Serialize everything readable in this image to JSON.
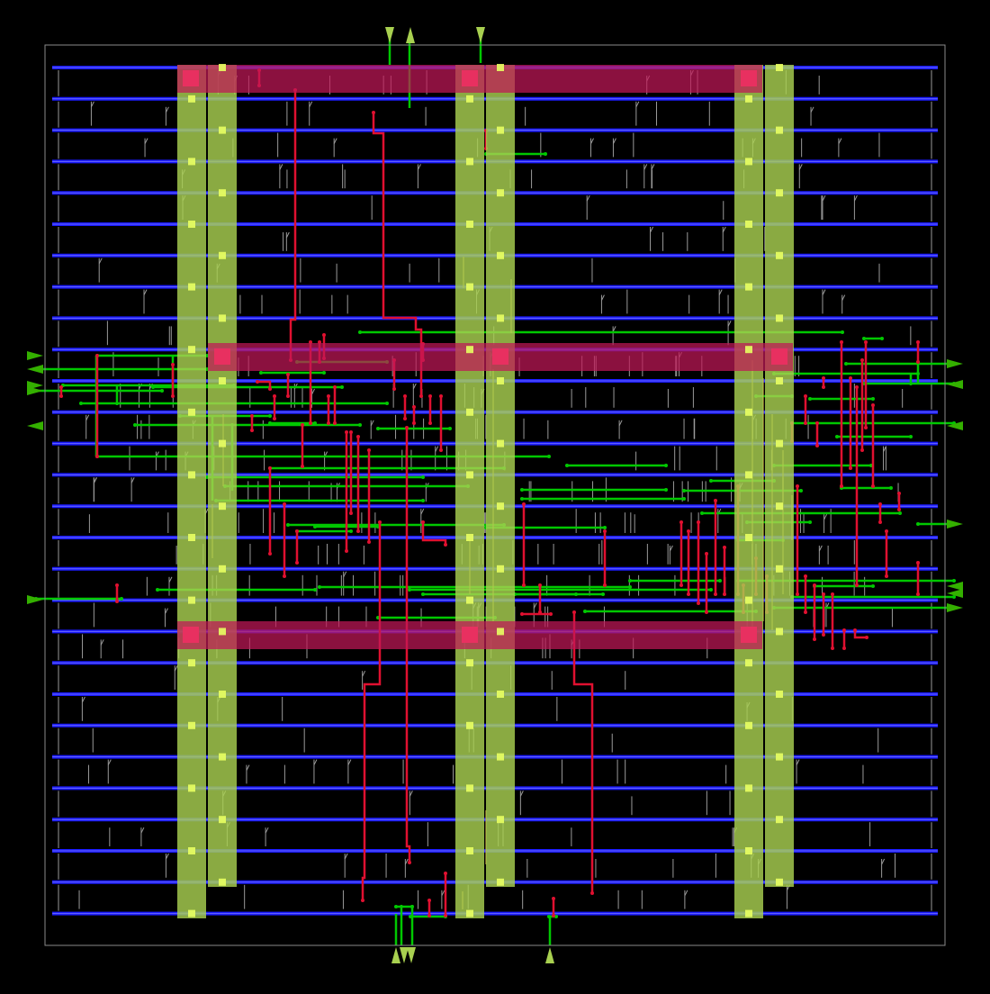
{
  "layout_view": {
    "colors": {
      "background": "#000000",
      "die_boundary": "#8a8a8a",
      "metal1_rail": "#1a1aff",
      "metal2_route": "#00c800",
      "metal3_route": "#e01030",
      "power_stripe": "#a8d050",
      "power_ring": "#c01858",
      "via": "#e8ff60",
      "cell_outline": "#9a9a9a",
      "pin": "#34b000"
    },
    "stripe_columns": 3,
    "ring_rows": 3,
    "rail_count": 28
  }
}
